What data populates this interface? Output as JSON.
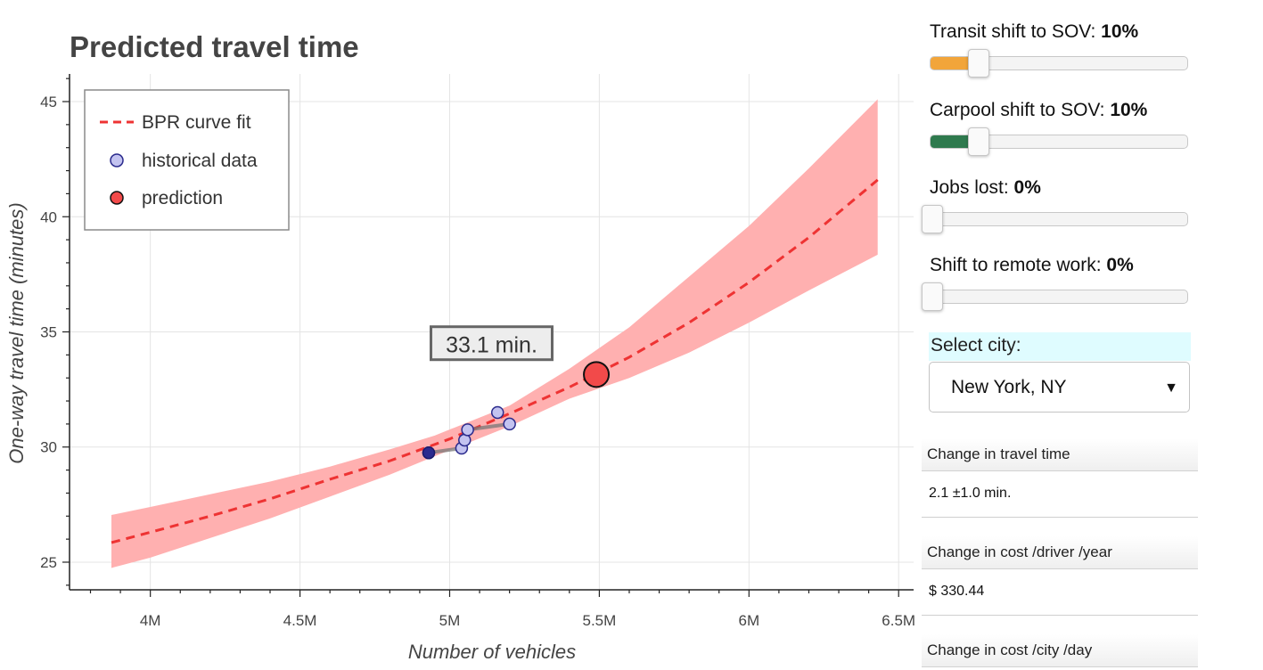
{
  "chart_data": {
    "type": "line",
    "title": "Predicted travel time",
    "xlabel": "Number of vehicles",
    "ylabel": "One-way travel time (minutes)",
    "xlim": [
      3730000,
      6550000
    ],
    "ylim": [
      23.8,
      46.2
    ],
    "x_ticks": [
      4000000,
      4500000,
      5000000,
      5500000,
      6000000,
      6500000
    ],
    "x_tick_labels": [
      "4M",
      "4.5M",
      "5M",
      "5.5M",
      "6M",
      "6.5M"
    ],
    "y_ticks": [
      25,
      30,
      35,
      40,
      45
    ],
    "y_tick_labels": [
      "25",
      "30",
      "35",
      "40",
      "45"
    ],
    "grid": true,
    "legend_position": "top-left",
    "legend": [
      "BPR curve fit",
      "historical data",
      "prediction"
    ],
    "series": [
      {
        "name": "BPR curve fit",
        "kind": "dashed-line",
        "color": "#ee3333",
        "x": [
          3870000,
          4000000,
          4200000,
          4400000,
          4600000,
          4800000,
          5000000,
          5200000,
          5400000,
          5600000,
          5800000,
          6000000,
          6200000,
          6430000
        ],
        "y": [
          25.85,
          26.3,
          27.0,
          27.75,
          28.6,
          29.4,
          30.35,
          31.45,
          32.6,
          33.9,
          35.4,
          37.15,
          39.1,
          41.6
        ]
      },
      {
        "name": "confidence band",
        "kind": "band",
        "color": "#ffb0b0",
        "x": [
          3870000,
          4000000,
          4200000,
          4400000,
          4600000,
          4800000,
          4950000,
          5200000,
          5400000,
          5600000,
          5800000,
          6000000,
          6200000,
          6430000
        ],
        "upper": [
          27.05,
          27.4,
          27.95,
          28.5,
          29.15,
          29.9,
          30.5,
          31.8,
          33.4,
          35.2,
          37.4,
          39.6,
          42.1,
          45.1
        ],
        "lower": [
          24.75,
          25.2,
          26.05,
          26.9,
          27.85,
          28.8,
          29.6,
          30.9,
          32.1,
          33.0,
          34.1,
          35.4,
          36.8,
          38.35
        ]
      },
      {
        "name": "historical data",
        "kind": "scatter",
        "color": "#c3c3f0",
        "x": [
          4930000,
          5040000,
          5050000,
          5060000,
          5160000,
          5200000
        ],
        "y": [
          29.75,
          29.95,
          30.3,
          30.75,
          31.5,
          31.0
        ]
      },
      {
        "name": "prediction",
        "kind": "point",
        "color": "#f24a4a",
        "x": [
          5490000
        ],
        "y": [
          33.15
        ]
      }
    ],
    "annotation": {
      "text": "33.1 min.",
      "x": 5140000,
      "y": 34.45
    }
  },
  "controls": {
    "sliders": [
      {
        "label": "Transit shift to SOV: ",
        "value_text": "10%",
        "fraction": 0.1,
        "fill_color": "#f2a53a"
      },
      {
        "label": "Carpool shift to SOV: ",
        "value_text": "10%",
        "fraction": 0.1,
        "fill_color": "#2f7a4e"
      },
      {
        "label": "Jobs lost: ",
        "value_text": "0%",
        "fraction": 0,
        "fill_color": ""
      },
      {
        "label": "Shift to remote work: ",
        "value_text": "0%",
        "fraction": 0,
        "fill_color": ""
      }
    ],
    "city_select": {
      "label": "Select city:",
      "value": "New York, NY",
      "arrow": "▼"
    },
    "tables": [
      {
        "header": "Change in travel time",
        "value": "2.1 ±1.0 min."
      },
      {
        "header": "Change in cost /driver /year",
        "value": "$ 330.44"
      },
      {
        "header": "Change in cost /city /day",
        "value": ""
      }
    ]
  }
}
